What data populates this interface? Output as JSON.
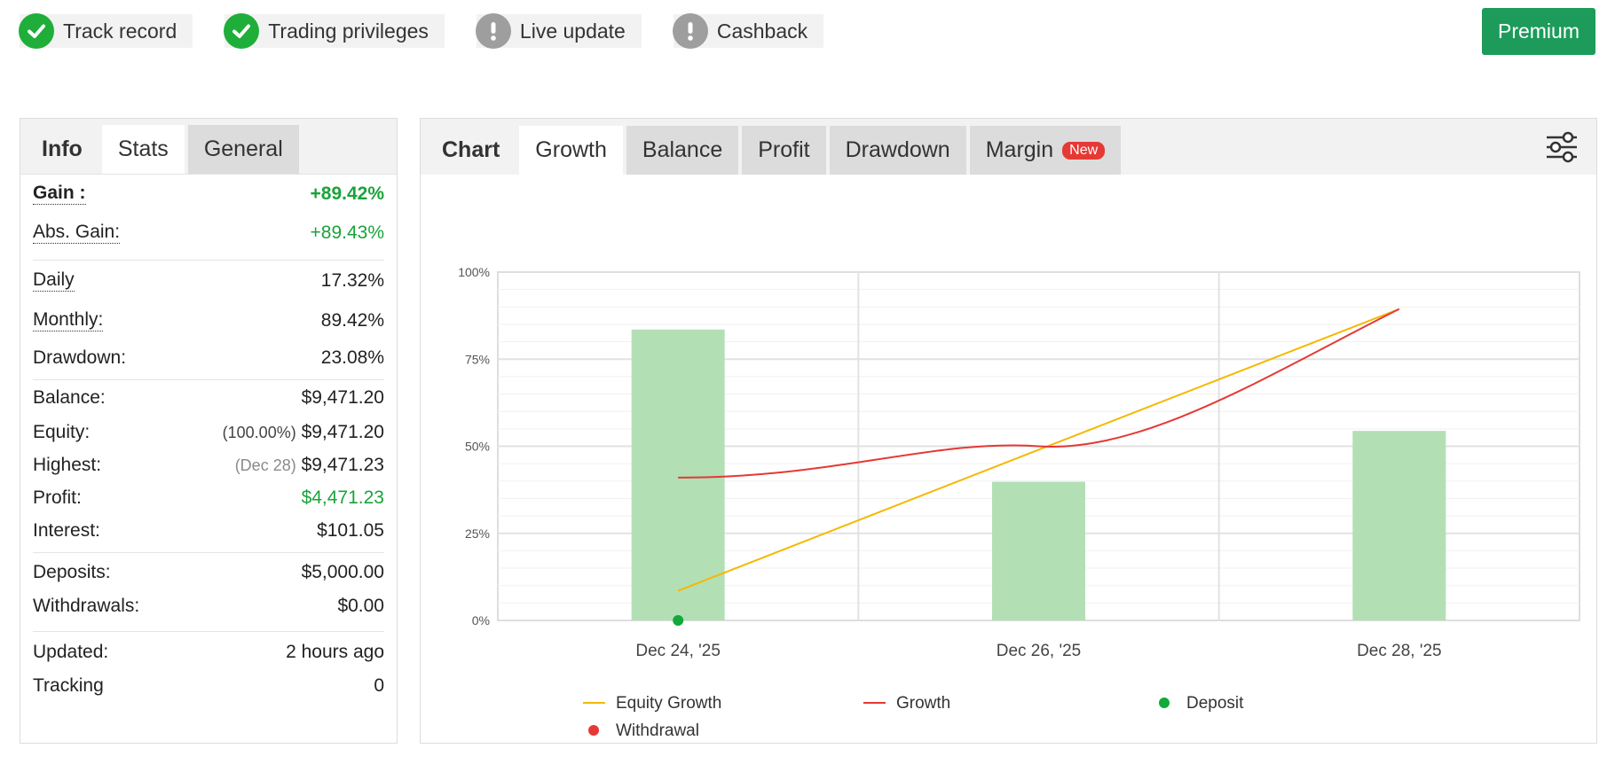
{
  "badges": [
    {
      "label": "Track record",
      "status": "ok"
    },
    {
      "label": "Trading privileges",
      "status": "ok"
    },
    {
      "label": "Live update",
      "status": "warn"
    },
    {
      "label": "Cashback",
      "status": "warn"
    }
  ],
  "premium_label": "Premium",
  "left_tabs": [
    {
      "label": "Info"
    },
    {
      "label": "Stats"
    },
    {
      "label": "General"
    }
  ],
  "stats": {
    "gain": {
      "label": "Gain :",
      "value": "+89.42%"
    },
    "abs_gain": {
      "label": "Abs. Gain:",
      "value": "+89.43%"
    },
    "daily": {
      "label": "Daily",
      "value": "17.32%"
    },
    "monthly": {
      "label": "Monthly:",
      "value": "89.42%"
    },
    "drawdown": {
      "label": "Drawdown:",
      "value": "23.08%"
    },
    "balance": {
      "label": "Balance:",
      "value": "$9,471.20"
    },
    "equity": {
      "label": "Equity:",
      "note": "(100.00%)",
      "value": "$9,471.20"
    },
    "highest": {
      "label": "Highest:",
      "note": "(Dec 28)",
      "value": "$9,471.23"
    },
    "profit": {
      "label": "Profit:",
      "value": "$4,471.23"
    },
    "interest": {
      "label": "Interest:",
      "value": "$101.05"
    },
    "deposits": {
      "label": "Deposits:",
      "value": "$5,000.00"
    },
    "withdrawals": {
      "label": "Withdrawals:",
      "value": "$0.00"
    },
    "updated": {
      "label": "Updated:",
      "value": "2 hours ago"
    },
    "tracking": {
      "label": "Tracking",
      "value": "0"
    }
  },
  "chart_tabs": [
    {
      "label": "Chart"
    },
    {
      "label": "Growth"
    },
    {
      "label": "Balance"
    },
    {
      "label": "Profit"
    },
    {
      "label": "Drawdown"
    },
    {
      "label": "Margin",
      "tag": "New"
    }
  ],
  "colors": {
    "accent_green": "#1d9b5a",
    "positive": "#1aa33a",
    "bar": "#b3dfb4",
    "equity_line": "#f5b800",
    "growth_line": "#e53935",
    "deposit": "#11a93a",
    "withdrawal": "#e53935",
    "new_tag": "#e53935"
  },
  "chart_data": {
    "type": "bar",
    "categories": [
      "Dec 24, '25",
      "Dec 26, '25",
      "Dec 28, '25"
    ],
    "ylim": [
      0,
      100
    ],
    "yticks": [
      "0%",
      "25%",
      "50%",
      "75%",
      "100%"
    ],
    "grid": true,
    "legend_position": "bottom",
    "bars": [
      83.5,
      39.8,
      54.4
    ],
    "series": [
      {
        "name": "Equity Growth",
        "kind": "line",
        "x": [
          0,
          1,
          2
        ],
        "values": [
          8.5,
          49,
          89.4
        ]
      },
      {
        "name": "Growth",
        "kind": "line",
        "x": [
          0,
          1,
          2
        ],
        "values": [
          41,
          50,
          89.4
        ]
      },
      {
        "name": "Deposit",
        "kind": "marker",
        "x": [
          0
        ],
        "values": [
          0
        ]
      },
      {
        "name": "Withdrawal",
        "kind": "marker",
        "x": [],
        "values": []
      }
    ]
  }
}
